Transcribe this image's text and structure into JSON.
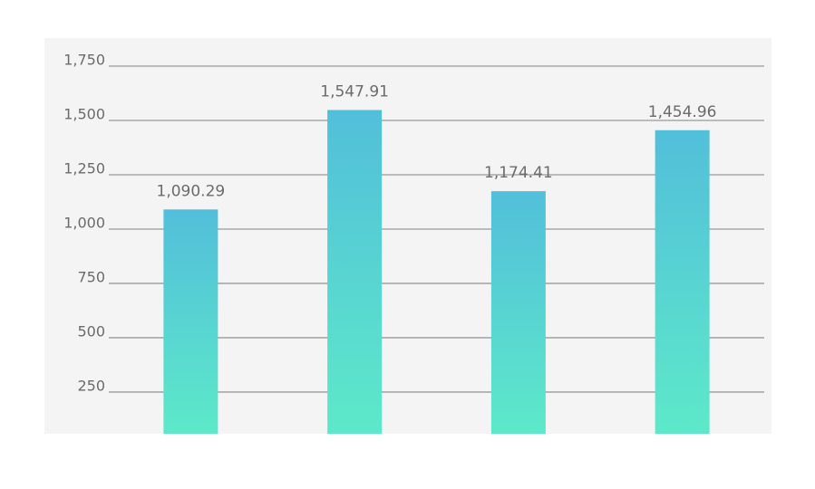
{
  "chart_data": {
    "type": "bar",
    "categories": [
      null,
      null,
      null,
      null
    ],
    "values": [
      1090.29,
      1547.91,
      1174.41,
      1454.96
    ],
    "value_labels": [
      "1,090.29",
      "1,547.91",
      "1,174.41",
      "1,454.96"
    ],
    "gradient": [
      "#52bfda",
      "#5de9c9"
    ],
    "ylim": [
      58,
      1750
    ],
    "yticks": [
      250,
      500,
      750,
      {
        "value": 1000,
        "label": "1,000"
      },
      {
        "value": 1250,
        "label": "1,250"
      },
      {
        "value": 1500,
        "label": "1,500"
      },
      {
        "value": 1750,
        "label": "1,750"
      }
    ],
    "grid": true
  }
}
